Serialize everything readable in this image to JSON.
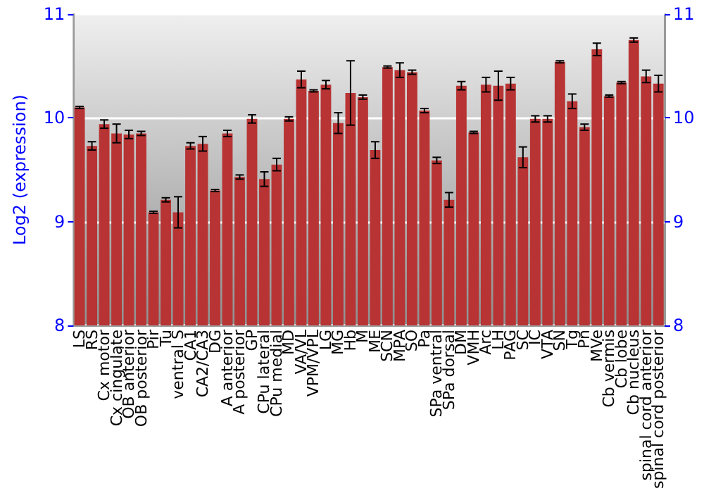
{
  "chart_data": {
    "type": "bar",
    "ylabel": "Log2 (expression)",
    "categories": [
      "LS",
      "RS",
      "Cx motor",
      "Cx cingulate",
      "OB anterior",
      "OB posterior",
      "Pir",
      "Tu",
      "ventral S",
      "CA1",
      "CA2/CA3",
      "DG",
      "A anterior",
      "A posterior",
      "GP",
      "CPu lateral",
      "CPu medial",
      "MD",
      "VA/VL",
      "VPM/VPL",
      "LG",
      "MG",
      "Hb",
      "M",
      "ME",
      "SCN",
      "MPA",
      "SO",
      "Pa",
      "SPa ventral",
      "SPa dorsal",
      "DM",
      "VMH",
      "Arc",
      "LH",
      "PAG",
      "SC",
      "IC",
      "VTA",
      "SN",
      "Tg",
      "Pn",
      "MVe",
      "Cb vermis",
      "Cb lobe",
      "Cb nucleus",
      "spinal cord anterior",
      "spinal cord posterior"
    ],
    "values": [
      10.1,
      9.73,
      9.94,
      9.85,
      9.84,
      9.85,
      9.09,
      9.21,
      9.09,
      9.73,
      9.75,
      9.3,
      9.85,
      9.43,
      9.99,
      9.41,
      9.55,
      9.99,
      10.37,
      10.26,
      10.32,
      9.95,
      10.24,
      10.2,
      9.69,
      10.49,
      10.46,
      10.44,
      10.07,
      9.59,
      9.21,
      10.31,
      9.86,
      10.32,
      10.31,
      10.33,
      9.62,
      9.99,
      9.99,
      10.54,
      10.16,
      9.91,
      10.66,
      10.21,
      10.34,
      10.75,
      10.4,
      10.33
    ],
    "errors": [
      0.01,
      0.04,
      0.04,
      0.09,
      0.04,
      0.02,
      0.01,
      0.02,
      0.15,
      0.03,
      0.07,
      0.01,
      0.03,
      0.02,
      0.04,
      0.07,
      0.06,
      0.02,
      0.08,
      0.01,
      0.04,
      0.1,
      0.31,
      0.02,
      0.08,
      0.01,
      0.07,
      0.02,
      0.02,
      0.03,
      0.07,
      0.04,
      0.01,
      0.07,
      0.14,
      0.06,
      0.1,
      0.03,
      0.03,
      0.01,
      0.07,
      0.03,
      0.06,
      0.01,
      0.01,
      0.02,
      0.06,
      0.08
    ],
    "color": "#b83434",
    "ylim": [
      8,
      11
    ],
    "yticks": [
      8,
      9,
      10,
      11
    ],
    "y2lim": [
      8,
      11
    ],
    "y2ticks": [
      8,
      9,
      10,
      11
    ],
    "grid": "y"
  }
}
